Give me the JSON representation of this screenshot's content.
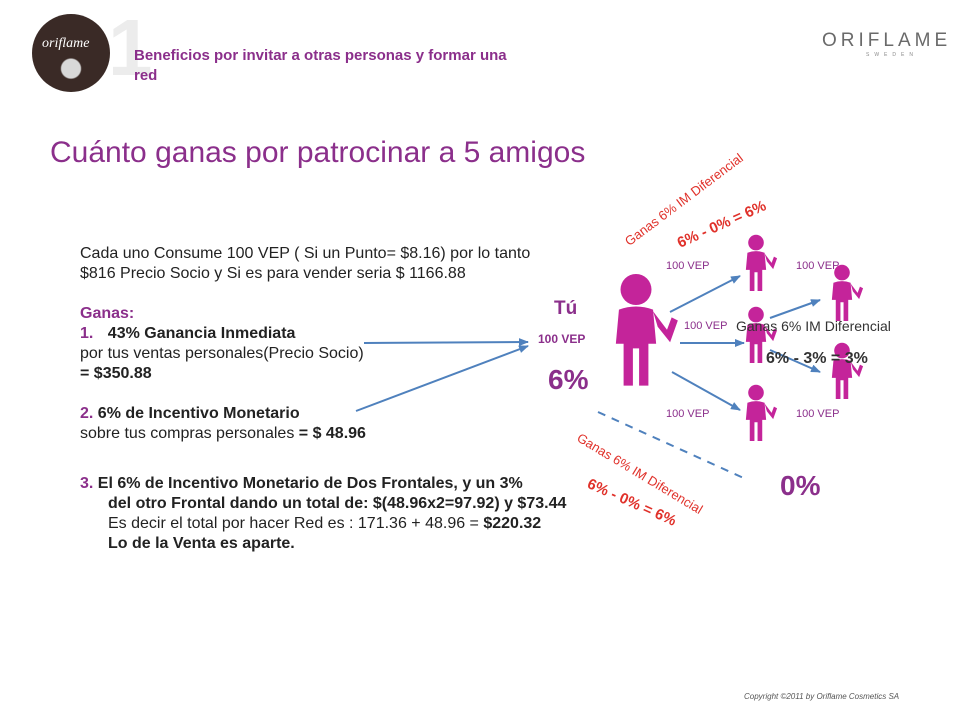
{
  "header": {
    "number": "1",
    "title": "Beneficios por invitar a otras personas y formar una red",
    "logo_text": "ORIFLAME",
    "logo_sub": "SWEDEN",
    "badge_text": "oriflame"
  },
  "main_title": "Cuánto ganas por patrocinar a 5 amigos",
  "body": {
    "line1": "Cada uno Consume 100 VEP ( Si un Punto= $8.16) por lo tanto",
    "line2": "$816 Precio Socio y Si es para vender seria $ 1166.88",
    "ganas": "Ganas:",
    "item1_num": "1.",
    "item1_title": "43% Ganancia Inmediata",
    "item1_desc": "por tus ventas personales(Precio Socio)",
    "item1_value": " = $350.88",
    "item2_num": "2.",
    "item2_title": "6% de Incentivo Monetario",
    "item2_desc": "sobre tus compras personales",
    "item2_value": " = $ 48.96",
    "item3_num": "3.",
    "item3_line1": "El 6% de Incentivo Monetario de Dos Frontales, y un 3%",
    "item3_line2": "del otro Frontal dando un total de: $(48.96x2=97.92) y $73.44",
    "item3_line3a": "Es decir el total por hacer Red es : 171.36 + 48.96 = ",
    "item3_line3b": "$220.32",
    "item3_line4": "Lo de la Venta es aparte."
  },
  "diagram": {
    "tu_label": "Tú",
    "tu_vep": "100 VEP",
    "tu_pct": "6%",
    "zero_pct": "0%",
    "vep_top_left": "100 VEP",
    "vep_top_right": "100 VEP",
    "vep_mid": "100 VEP",
    "vep_bot_left": "100 VEP",
    "vep_bot_right": "100 VEP",
    "label_top": "Ganas 6% IM Diferencial",
    "formula_top": "6% - 0% = 6%",
    "label_mid": "Ganas 6% IM Diferencial",
    "formula_mid": "6% - 3% = 3%",
    "label_bottom": "Ganas 6% IM Diferencial",
    "formula_bottom": "6% - 0% = 6%"
  },
  "footer": {
    "copyright": "Copyright ©2011 by Oriflame Cosmetics SA"
  },
  "colors": {
    "purple": "#8b2f8b",
    "figure": "#c4249a",
    "red": "#e0312a",
    "arrow": "#4f81bd"
  }
}
